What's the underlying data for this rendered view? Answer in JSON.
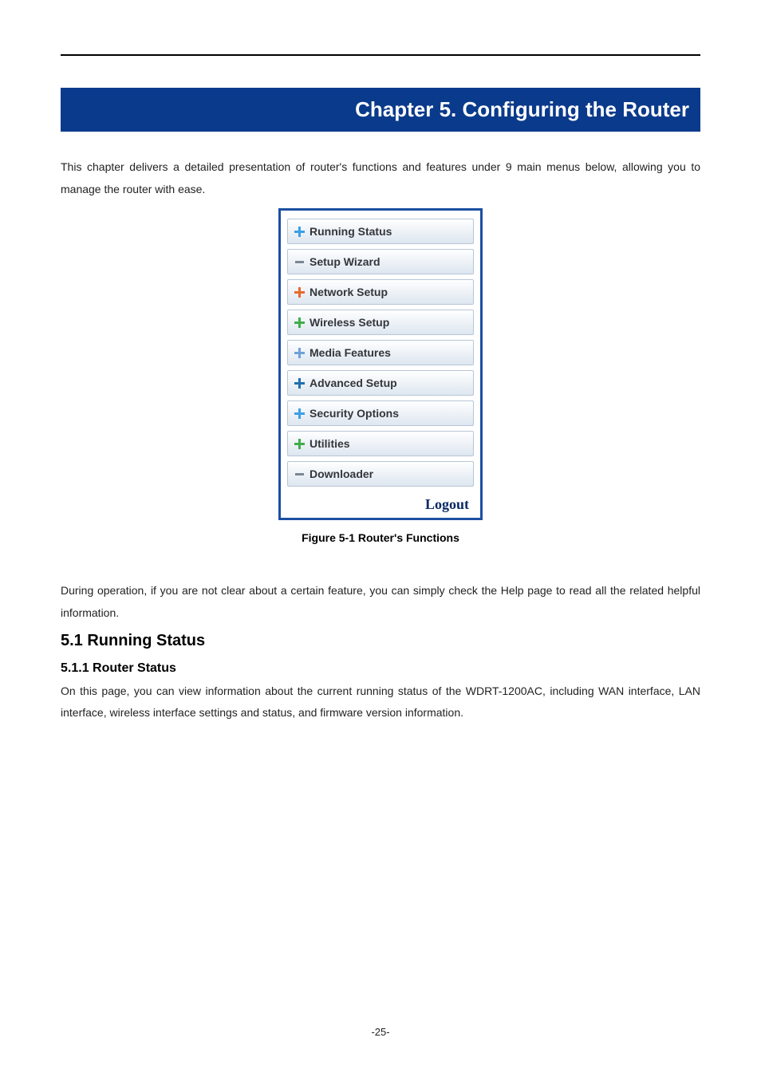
{
  "chapter_banner": "Chapter 5.   Configuring the Router",
  "intro_text": "This chapter delivers a detailed presentation of router's functions and features under 9 main menus below, allowing you to manage the router with ease.",
  "menu": {
    "items": [
      {
        "label": "Running Status",
        "icon": "plus",
        "icon_color": "#3aa0e6"
      },
      {
        "label": "Setup Wizard",
        "icon": "dash",
        "icon_color": "#7a8793"
      },
      {
        "label": "Network Setup",
        "icon": "plus",
        "icon_color": "#e66a2c"
      },
      {
        "label": "Wireless Setup",
        "icon": "plus",
        "icon_color": "#3fae4a"
      },
      {
        "label": "Media Features",
        "icon": "plus",
        "icon_color": "#6fa1d8"
      },
      {
        "label": "Advanced Setup",
        "icon": "plus",
        "icon_color": "#1f6fae"
      },
      {
        "label": "Security Options",
        "icon": "plus",
        "icon_color": "#3aa0e6"
      },
      {
        "label": "Utilities",
        "icon": "plus",
        "icon_color": "#3fae4a"
      },
      {
        "label": "Downloader",
        "icon": "dash",
        "icon_color": "#7a8793"
      }
    ],
    "logout_label": "Logout",
    "border_color": "#1c4fa1",
    "item_gradient_top": "#ffffff",
    "item_gradient_bottom": "#dde6f0",
    "item_border_color": "#b9c6d6",
    "label_color": "#33373b"
  },
  "figure_caption": "Figure 5-1 Router's Functions",
  "help_text": "During operation, if you are not clear about a certain feature, you can simply check the Help page to read all the related helpful information.",
  "section_h2": "5.1  Running Status",
  "section_h3": "5.1.1  Router Status",
  "section_body": "On this page, you can view information about the current running status of the WDRT-1200AC, including WAN interface, LAN interface, wireless interface settings and status, and firmware version information.",
  "page_number": "-25-"
}
